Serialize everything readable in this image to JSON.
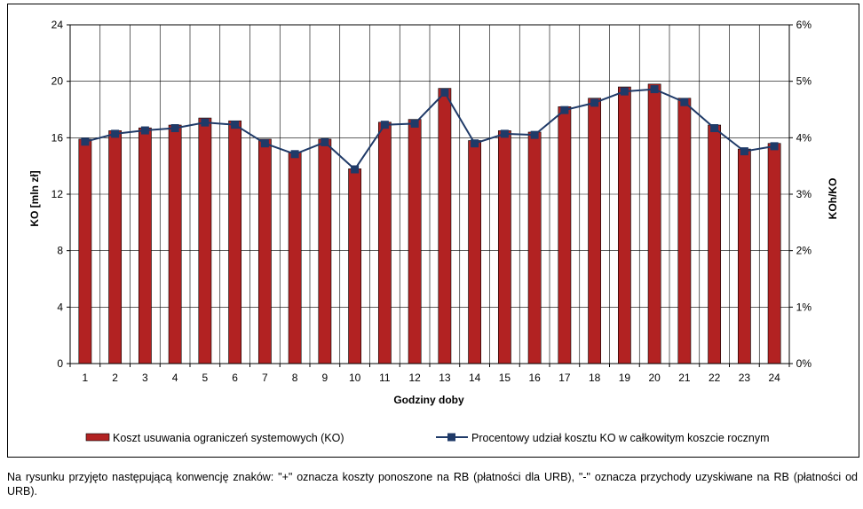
{
  "chart_data": {
    "type": "bar",
    "categories": [
      "1",
      "2",
      "3",
      "4",
      "5",
      "6",
      "7",
      "8",
      "9",
      "10",
      "11",
      "12",
      "13",
      "14",
      "15",
      "16",
      "17",
      "18",
      "19",
      "20",
      "21",
      "22",
      "23",
      "24"
    ],
    "series": [
      {
        "name": "Koszt usuwania ograniczeń systemowych (KO)",
        "type": "bar",
        "axis": "left",
        "color": "#B22222",
        "values": [
          15.9,
          16.5,
          16.7,
          16.9,
          17.4,
          17.2,
          15.9,
          15.0,
          15.9,
          13.8,
          17.1,
          17.3,
          19.5,
          15.8,
          16.5,
          16.4,
          18.2,
          18.8,
          19.6,
          19.8,
          18.8,
          16.9,
          15.2,
          15.6
        ]
      },
      {
        "name": "Procentowy udział kosztu KO w całkowitym koszcie rocznym",
        "type": "line",
        "axis": "right",
        "color": "#1F3A68",
        "marker_color": "#1F3A68",
        "values": [
          3.93,
          4.07,
          4.13,
          4.17,
          4.27,
          4.23,
          3.9,
          3.71,
          3.92,
          3.44,
          4.23,
          4.25,
          4.8,
          3.9,
          4.07,
          4.05,
          4.49,
          4.62,
          4.82,
          4.86,
          4.63,
          4.17,
          3.76,
          3.85
        ]
      }
    ],
    "y_left": {
      "label": "KO [mln zł]",
      "ylim": [
        0,
        24
      ],
      "ticks": [
        "0",
        "4",
        "8",
        "12",
        "16",
        "20",
        "24"
      ]
    },
    "y_right": {
      "label": "KOh/KO",
      "ylim": [
        0,
        6
      ],
      "ticks": [
        "0%",
        "1%",
        "2%",
        "3%",
        "4%",
        "5%",
        "6%"
      ]
    },
    "xlabel": "Godziny doby",
    "grid": "horizontal and vertical",
    "legend_position": "bottom"
  },
  "footnote": "Na rysunku przyjęto następującą konwencję znaków: \"+\" oznacza koszty ponoszone na RB (płatności dla URB), \"-\" oznacza przychody uzyskiwane na RB (płatności od URB)."
}
